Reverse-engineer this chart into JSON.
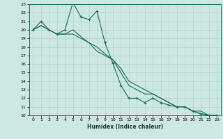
{
  "xlabel": "Humidex (Indice chaleur)",
  "background_color": "#cde8e0",
  "grid_color": "#b0d4c8",
  "line_color": "#1a6b5a",
  "text_color": "#1a3a30",
  "xlim": [
    -0.5,
    23.5
  ],
  "ylim": [
    10,
    23
  ],
  "x": [
    0,
    1,
    2,
    3,
    4,
    5,
    6,
    7,
    8,
    9,
    10,
    11,
    12,
    13,
    14,
    15,
    16,
    17,
    18,
    19,
    20,
    21,
    22,
    23
  ],
  "line1": [
    20,
    21,
    20,
    19.5,
    20,
    23.2,
    21.5,
    21.2,
    22.2,
    18.5,
    16.1,
    13.5,
    12.0,
    12.0,
    11.5,
    12.0,
    11.5,
    11.2,
    11.0,
    11.0,
    10.5,
    10.2,
    10.0,
    10.0
  ],
  "line2": [
    20,
    20.5,
    20,
    19.5,
    19.5,
    20.0,
    19.2,
    18.5,
    18.0,
    17.2,
    16.5,
    15.5,
    14.0,
    13.5,
    13.0,
    12.5,
    12.0,
    11.5,
    11.0,
    11.0,
    10.5,
    10.2,
    10.0,
    10.0
  ],
  "line3": [
    20,
    20.5,
    20,
    19.5,
    19.5,
    19.5,
    19.0,
    18.5,
    17.5,
    17.0,
    16.5,
    15.0,
    13.5,
    13.0,
    12.5,
    12.5,
    12.0,
    11.5,
    11.0,
    11.0,
    10.5,
    10.5,
    10.0,
    10.0
  ]
}
